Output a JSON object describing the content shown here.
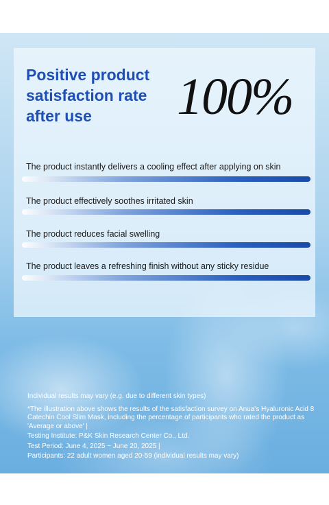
{
  "header": {
    "title_lines": [
      "Positive product",
      "satisfaction rate",
      "after use"
    ],
    "rate": "100%"
  },
  "statements": [
    "The product instantly delivers a cooling effect after applying on skin",
    "The product effectively soothes irritated skin",
    "The product reduces facial swelling",
    "The product leaves a refreshing finish without any sticky residue"
  ],
  "footer": {
    "notes": [
      "Individual results may vary (e.g. due to different skin types)",
      "*The illustration above shows the results of the satisfaction survey on Anua's Hyaluronic Acid 8 Catechin Cool Slim Mask, including the percentage of participants who rated the product as 'Average or above' |",
      "Testing Institute: P&K Skin Research Center Co., Ltd.",
      "Test Period: June 4, 2025 ~ June 20, 2025 |",
      "Participants: 22 adult women aged 20-59 (individual results may vary)"
    ]
  }
}
